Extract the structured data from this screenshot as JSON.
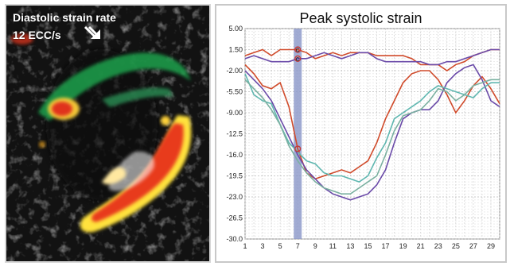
{
  "image_panel": {
    "label_line1": "Diastolic strain rate",
    "label_line2": "12 ECC/s",
    "arrow_icon": "double-arrow-down-right-icon"
  },
  "chart_data": {
    "type": "line",
    "title": "Peak systolic strain",
    "x": [
      1,
      2,
      3,
      4,
      5,
      6,
      7,
      8,
      9,
      10,
      11,
      12,
      13,
      14,
      15,
      16,
      17,
      18,
      19,
      20,
      21,
      22,
      23,
      24,
      25,
      26,
      27,
      28,
      29,
      30
    ],
    "xtick_labels": [
      "1",
      "3",
      "5",
      "7",
      "9",
      "11",
      "13",
      "15",
      "17",
      "19",
      "21",
      "23",
      "25",
      "27",
      "29"
    ],
    "ytick_labels": [
      "5.00",
      "1.50",
      "-2.00",
      "-5.50",
      "-9.00",
      "-12.5",
      "-16.0",
      "-19.5",
      "-23.0",
      "-26.5",
      "-30.0"
    ],
    "ylim": [
      -30,
      5
    ],
    "xlim": [
      1,
      30
    ],
    "grid": true,
    "highlight_x": 7,
    "markers": [
      {
        "x": 7,
        "y": 1.5,
        "label": "c"
      },
      {
        "x": 7,
        "y": 0.0,
        "label": "c"
      },
      {
        "x": 7,
        "y": -15.0,
        "label": ""
      }
    ],
    "series": [
      {
        "color": "#d04a2a",
        "values": [
          0.5,
          1.0,
          1.5,
          0.5,
          1.5,
          1.5,
          1.5,
          1.0,
          0.0,
          0.5,
          1.0,
          0.5,
          1.0,
          1.0,
          1.0,
          0.5,
          0.5,
          0.5,
          0.5,
          0.0,
          -1.0,
          -1.0,
          -1.0,
          -2.0,
          -1.0,
          -0.5,
          0.5,
          1.0,
          1.5,
          1.5
        ]
      },
      {
        "color": "#6a4aa8",
        "values": [
          0.0,
          0.5,
          0.0,
          -0.5,
          -0.5,
          -0.5,
          0.0,
          0.0,
          0.5,
          1.0,
          0.5,
          0.0,
          0.5,
          1.0,
          1.0,
          0.0,
          -0.5,
          -0.5,
          -0.5,
          -0.5,
          -0.5,
          -1.0,
          -1.0,
          -0.5,
          -0.5,
          0.0,
          0.5,
          1.0,
          1.5,
          1.5
        ]
      },
      {
        "color": "#d04a2a",
        "values": [
          -1.0,
          -2.5,
          -4.5,
          -5.0,
          -4.0,
          -8.0,
          -15.0,
          -19.0,
          -20.0,
          -19.5,
          -19.0,
          -18.5,
          -19.0,
          -18.0,
          -17.0,
          -14.0,
          -10.0,
          -7.0,
          -4.0,
          -2.5,
          -2.0,
          -2.0,
          -3.5,
          -6.0,
          -9.0,
          -7.0,
          -4.5,
          -3.0,
          -5.0,
          -7.5
        ]
      },
      {
        "color": "#6a4aa8",
        "values": [
          -2.0,
          -3.5,
          -5.0,
          -7.0,
          -10.0,
          -13.0,
          -16.0,
          -18.5,
          -20.0,
          -21.5,
          -22.5,
          -23.0,
          -23.5,
          -23.0,
          -22.5,
          -21.0,
          -18.5,
          -14.0,
          -10.0,
          -9.0,
          -8.5,
          -8.5,
          -7.0,
          -4.0,
          -2.5,
          -1.5,
          -1.0,
          -3.5,
          -7.0,
          -8.0
        ]
      },
      {
        "color": "#5fb7b0",
        "values": [
          -2.5,
          -6.0,
          -7.0,
          -7.5,
          -11.0,
          -14.0,
          -15.5,
          -17.0,
          -17.5,
          -19.0,
          -19.5,
          -19.5,
          -20.0,
          -20.5,
          -19.5,
          -16.5,
          -14.0,
          -10.0,
          -9.0,
          -8.0,
          -7.0,
          -5.5,
          -4.5,
          -5.0,
          -5.5,
          -6.0,
          -6.5,
          -5.0,
          -4.0,
          -4.0
        ]
      },
      {
        "color": "#7ab0a0",
        "values": [
          -3.5,
          -5.0,
          -6.5,
          -8.5,
          -11.0,
          -14.5,
          -17.0,
          -19.0,
          -20.5,
          -21.5,
          -22.0,
          -22.5,
          -22.5,
          -21.5,
          -20.5,
          -19.5,
          -16.0,
          -12.0,
          -9.5,
          -9.0,
          -8.5,
          -7.0,
          -5.0,
          -5.5,
          -7.0,
          -6.0,
          -4.5,
          -4.0,
          -3.5,
          -3.5
        ]
      }
    ]
  }
}
